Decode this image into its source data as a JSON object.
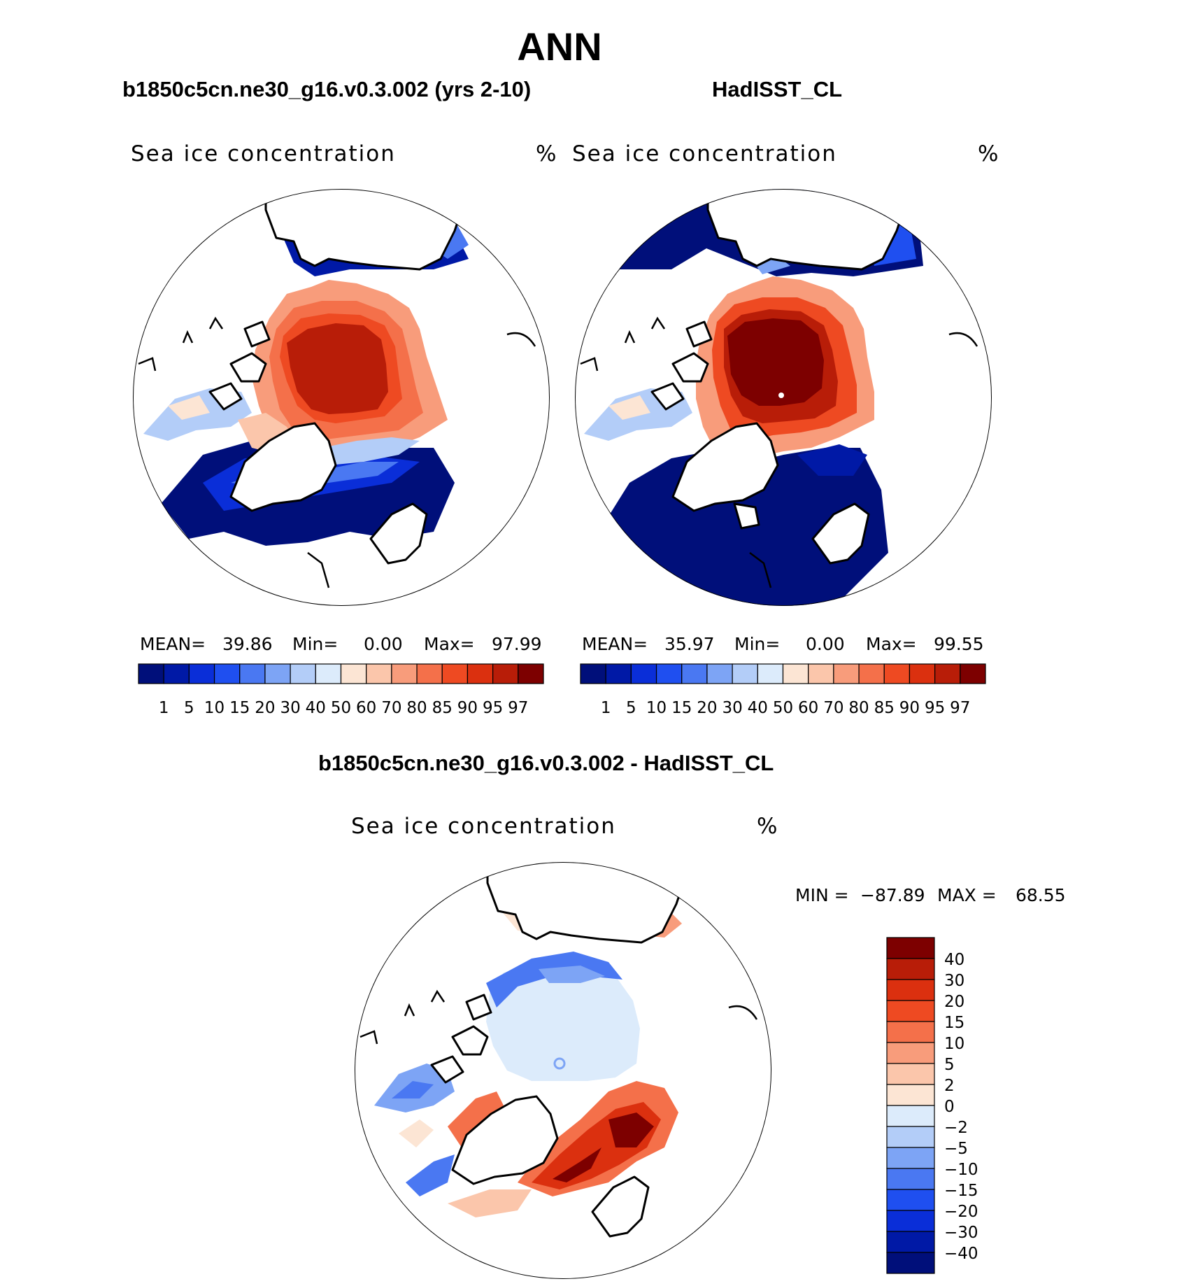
{
  "main_title": "ANN",
  "panels": [
    {
      "title": "b1850c5cn.ne30_g16.v0.3.002 (yrs 2-10)",
      "field": "Sea ice concentration",
      "units": "%",
      "stats": {
        "mean_label": "MEAN=",
        "mean": "39.86",
        "min_label": "Min=",
        "min": "0.00",
        "max_label": "Max=",
        "max": "97.99"
      },
      "colorbar_ticks": [
        "1",
        "5",
        "10",
        "15",
        "20",
        "30",
        "40",
        "50",
        "60",
        "70",
        "80",
        "85",
        "90",
        "95",
        "97"
      ]
    },
    {
      "title": "HadISST_CL",
      "field": "Sea ice concentration",
      "units": "%",
      "stats": {
        "mean_label": "MEAN=",
        "mean": "35.97",
        "min_label": "Min=",
        "min": "0.00",
        "max_label": "Max=",
        "max": "99.55"
      },
      "colorbar_ticks": [
        "1",
        "5",
        "10",
        "15",
        "20",
        "30",
        "40",
        "50",
        "60",
        "70",
        "80",
        "85",
        "90",
        "95",
        "97"
      ]
    }
  ],
  "diff_panel": {
    "title": "b1850c5cn.ne30_g16.v0.3.002 - HadISST_CL",
    "field": "Sea ice concentration",
    "units": "%",
    "minmax": {
      "min_label": "MIN =",
      "min": "−87.89",
      "max_label": "MAX =",
      "max": "68.55"
    },
    "colorbar_ticks": [
      "40",
      "30",
      "20",
      "15",
      "10",
      "5",
      "2",
      "0",
      "−2",
      "−5",
      "−10",
      "−15",
      "−20",
      "−30",
      "−40"
    ]
  },
  "colors": {
    "abs_scale": [
      "#000f7a",
      "#0019a6",
      "#0a2ed8",
      "#1f4ff0",
      "#4a78f2",
      "#7da4f5",
      "#b3cdf8",
      "#dcebfb",
      "#fce5d4",
      "#fbc6ab",
      "#f89c7b",
      "#f4704a",
      "#ee4a22",
      "#db300f",
      "#b81d08",
      "#7d0000"
    ],
    "diff_scale": [
      "#7d0000",
      "#b81d08",
      "#db300f",
      "#ee4a22",
      "#f4704a",
      "#f89c7b",
      "#fbc6ab",
      "#fce5d4",
      "#dcebfb",
      "#b3cdf8",
      "#7da4f5",
      "#4a78f2",
      "#1f4ff0",
      "#0a2ed8",
      "#0019a6",
      "#000f7a"
    ]
  }
}
